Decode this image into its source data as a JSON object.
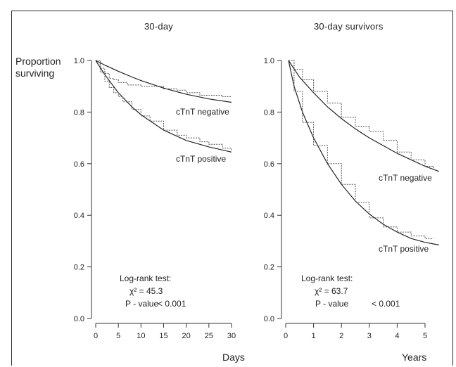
{
  "figure": {
    "ylabel": "Proportion surviving"
  },
  "chart_data": [
    {
      "type": "line",
      "title": "30-day",
      "xlabel": "Days",
      "ylabel": "Proportion surviving",
      "xlim": [
        0,
        30
      ],
      "ylim": [
        0,
        1.0
      ],
      "xticks": [
        0,
        5,
        10,
        15,
        20,
        25,
        30
      ],
      "yticks": [
        0.0,
        0.2,
        0.4,
        0.6,
        0.8,
        1.0
      ],
      "ytick_labels": [
        "0.0",
        "0.2",
        "0.4",
        "0.6",
        "0.8",
        "1.0"
      ],
      "grid": false,
      "annotation": {
        "lines": [
          "Log-rank test:",
          "χ² = 45.3",
          "P - value",
          "< 0.001"
        ]
      },
      "series": [
        {
          "name": "cTnT negative",
          "style": "fitted",
          "x": [
            0,
            2,
            5,
            8,
            10,
            15,
            20,
            25,
            30
          ],
          "y": [
            1.0,
            0.982,
            0.958,
            0.936,
            0.922,
            0.893,
            0.869,
            0.851,
            0.838
          ]
        },
        {
          "name": "cTnT negative",
          "style": "kaplan-meier",
          "x": [
            0,
            1,
            2,
            3,
            4,
            5,
            7,
            10,
            13,
            15,
            18,
            20,
            23,
            25,
            28,
            30
          ],
          "y": [
            1.0,
            0.97,
            0.95,
            0.93,
            0.925,
            0.915,
            0.905,
            0.9,
            0.9,
            0.89,
            0.885,
            0.875,
            0.865,
            0.865,
            0.86,
            0.86
          ]
        },
        {
          "name": "cTnT positive",
          "style": "fitted",
          "x": [
            0,
            2,
            5,
            8,
            10,
            15,
            20,
            25,
            30
          ],
          "y": [
            1.0,
            0.945,
            0.875,
            0.82,
            0.79,
            0.73,
            0.69,
            0.665,
            0.645
          ]
        },
        {
          "name": "cTnT positive",
          "style": "kaplan-meier",
          "x": [
            0,
            1,
            2,
            3,
            4,
            5,
            6,
            8,
            10,
            12,
            15,
            18,
            20,
            23,
            25,
            28,
            30
          ],
          "y": [
            1.0,
            0.955,
            0.92,
            0.895,
            0.875,
            0.86,
            0.84,
            0.81,
            0.785,
            0.765,
            0.73,
            0.71,
            0.7,
            0.685,
            0.675,
            0.66,
            0.65
          ]
        }
      ],
      "series_labels": [
        "cTnT negative",
        "cTnT positive"
      ]
    },
    {
      "type": "line",
      "title": "30-day survivors",
      "xlabel": "Years",
      "ylabel": "",
      "xlim": [
        0,
        5.5
      ],
      "ylim": [
        0,
        1.0
      ],
      "xticks": [
        0,
        1,
        2,
        3,
        4,
        5
      ],
      "yticks": [
        0.0,
        0.2,
        0.4,
        0.6,
        0.8,
        1.0
      ],
      "ytick_labels": [
        "0.0",
        "0.2",
        "0.4",
        "0.6",
        "0.8",
        "1.0"
      ],
      "grid": false,
      "annotation": {
        "lines": [
          "Log-rank test:",
          "χ² = 63.7",
          "P - value",
          "< 0.001"
        ]
      },
      "series": [
        {
          "name": "cTnT negative",
          "style": "fitted",
          "x": [
            0.1,
            0.5,
            1,
            1.5,
            2,
            2.5,
            3,
            3.5,
            4,
            4.5,
            5,
            5.5
          ],
          "y": [
            1.0,
            0.935,
            0.875,
            0.82,
            0.775,
            0.735,
            0.7,
            0.67,
            0.64,
            0.615,
            0.59,
            0.57
          ]
        },
        {
          "name": "cTnT negative",
          "style": "kaplan-meier",
          "x": [
            0.1,
            0.3,
            0.6,
            1,
            1.5,
            2,
            2.5,
            3,
            3.5,
            4,
            4.5,
            5,
            5.3
          ],
          "y": [
            1.0,
            0.965,
            0.925,
            0.88,
            0.835,
            0.78,
            0.745,
            0.725,
            0.69,
            0.645,
            0.615,
            0.59,
            0.58
          ]
        },
        {
          "name": "cTnT positive",
          "style": "fitted",
          "x": [
            0.1,
            0.3,
            0.6,
            1,
            1.5,
            2,
            2.5,
            3,
            3.5,
            4,
            4.5,
            5,
            5.5
          ],
          "y": [
            1.0,
            0.9,
            0.8,
            0.7,
            0.6,
            0.52,
            0.455,
            0.405,
            0.365,
            0.335,
            0.31,
            0.295,
            0.285
          ]
        },
        {
          "name": "cTnT positive",
          "style": "kaplan-meier",
          "x": [
            0.1,
            0.3,
            0.6,
            1,
            1.5,
            2,
            2.5,
            3,
            3.5,
            4,
            4.5,
            5,
            5.3
          ],
          "y": [
            1.0,
            0.88,
            0.76,
            0.67,
            0.6,
            0.52,
            0.45,
            0.39,
            0.355,
            0.335,
            0.32,
            0.31,
            0.31
          ]
        }
      ],
      "series_labels": [
        "cTnT negative",
        "cTnT positive"
      ]
    }
  ]
}
